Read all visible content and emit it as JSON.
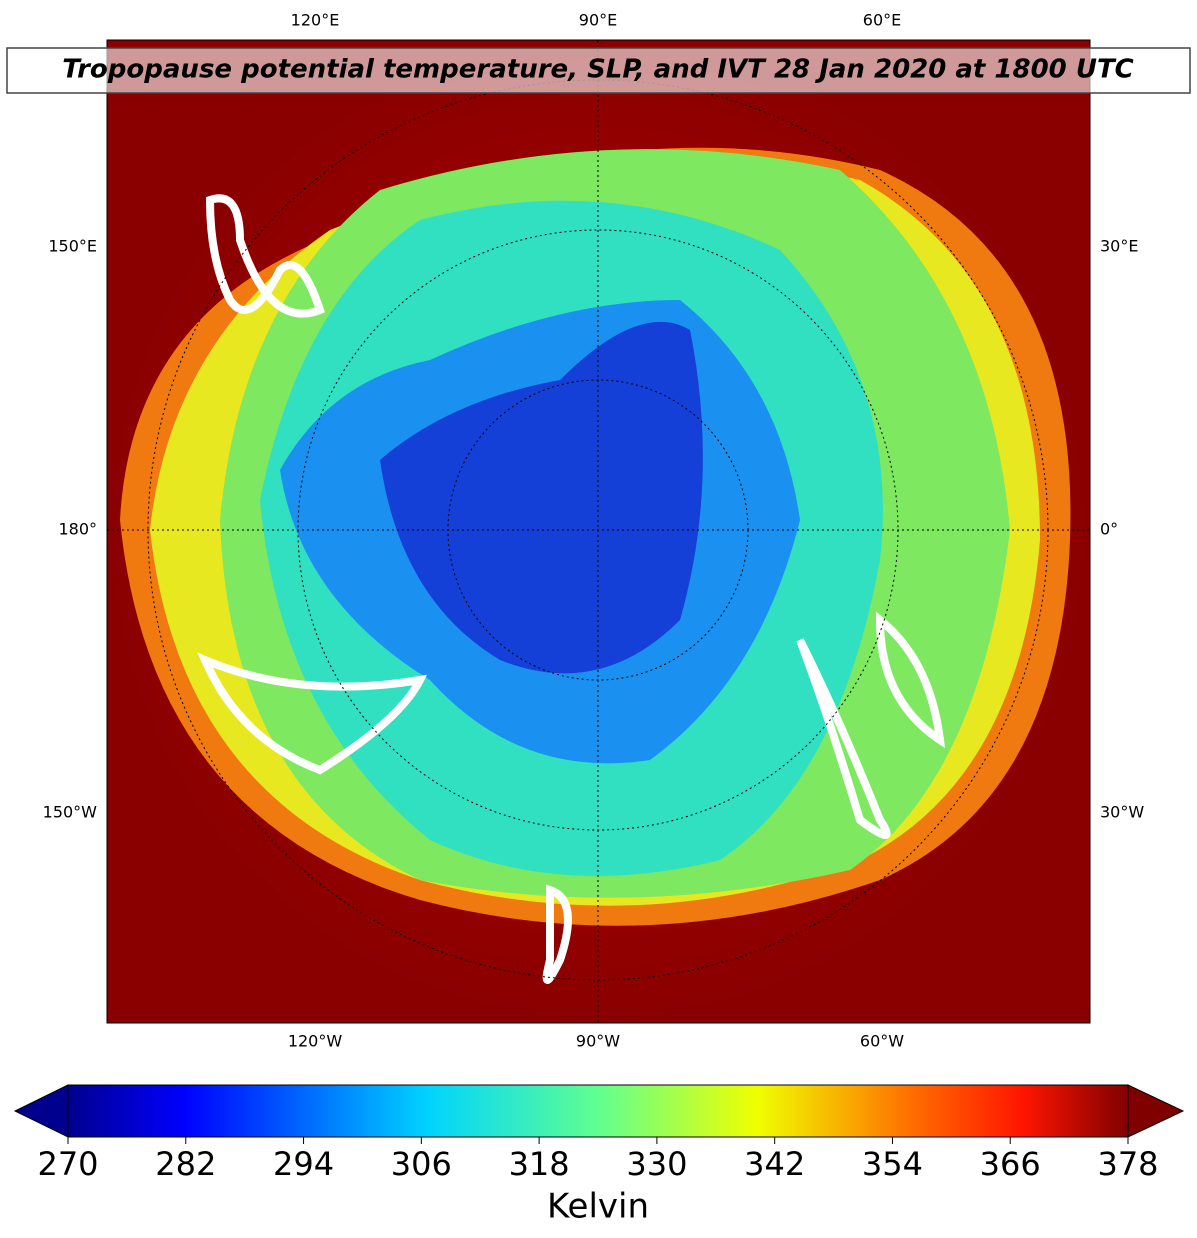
{
  "title": "Tropopause potential temperature, SLP, and IVT 28 Jan 2020 at 1800 UTC",
  "map": {
    "top_labels": [
      "120°E",
      "90°E",
      "60°E"
    ],
    "bottom_labels": [
      "120°W",
      "90°W",
      "60°W"
    ],
    "left_labels": [
      "150°E",
      "180°",
      "150°W"
    ],
    "right_labels": [
      "30°E",
      "0°",
      "30°W"
    ]
  },
  "colorbar": {
    "range": [
      270,
      378
    ],
    "ticks": [
      270,
      282,
      294,
      306,
      318,
      330,
      342,
      354,
      366,
      378
    ],
    "label": "Kelvin"
  }
}
